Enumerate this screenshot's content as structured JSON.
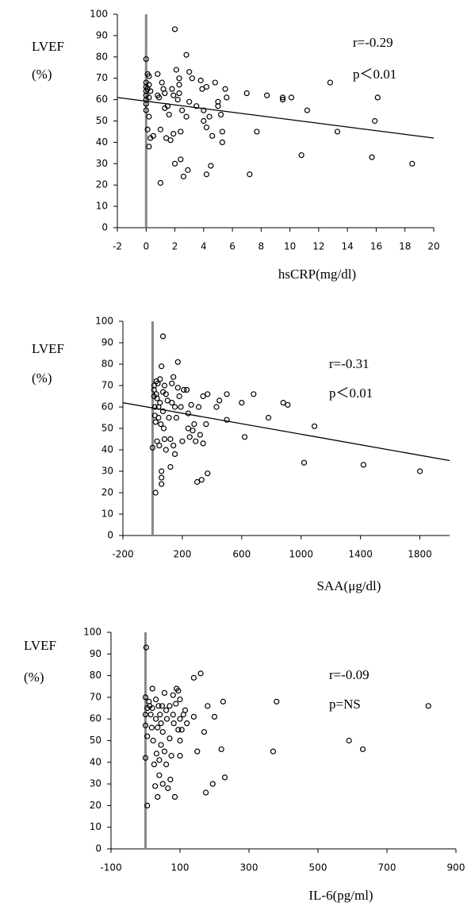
{
  "chart_data": [
    {
      "type": "scatter",
      "ylabel": "LVEF",
      "ylabel_unit": "(%)",
      "xlabel": "hsCRP(mg/dl)",
      "annotations": [
        "r=-0.29",
        "p＜0.01"
      ],
      "xlim": [
        -2,
        20
      ],
      "xticks": [
        -2,
        0,
        2,
        4,
        6,
        8,
        10,
        12,
        14,
        16,
        18,
        20
      ],
      "ylim": [
        0,
        100
      ],
      "yticks": [
        0,
        10,
        20,
        30,
        40,
        50,
        60,
        70,
        80,
        90,
        100
      ],
      "zero_line": true,
      "marker_color": "#000000",
      "fit": {
        "x": [
          -2,
          20
        ],
        "y": [
          61,
          42
        ]
      },
      "x": [
        0,
        0,
        0,
        0,
        0,
        0,
        0,
        0,
        0.1,
        0.2,
        0.2,
        0.1,
        0.3,
        0.2,
        0.2,
        0.1,
        0.3,
        0.2,
        0.5,
        0.8,
        0.8,
        0.9,
        1,
        1,
        1.1,
        1.2,
        1.3,
        1.3,
        1.4,
        1.5,
        1.6,
        1.7,
        1.8,
        1.9,
        1.9,
        2,
        2,
        2.1,
        2.2,
        2.3,
        2.3,
        2.3,
        2.4,
        2.4,
        2.5,
        2.6,
        2.8,
        2.8,
        2.9,
        3,
        3,
        3.2,
        3.5,
        3.8,
        3.9,
        4,
        4,
        4.2,
        4.2,
        4.2,
        4.4,
        4.5,
        4.6,
        4.8,
        5,
        5,
        5.2,
        5.3,
        5.3,
        5.5,
        5.6,
        7,
        7.2,
        7.7,
        8.4,
        9.5,
        9.5,
        10.1,
        10.8,
        11.2,
        12.8,
        13.3,
        15.7,
        15.9,
        16.1,
        18.5
      ],
      "y": [
        79,
        68,
        66,
        64,
        62,
        60,
        58,
        55,
        72,
        71,
        67,
        65,
        64,
        61,
        52,
        46,
        42,
        38,
        43,
        72,
        62,
        61,
        46,
        21,
        68,
        65,
        63,
        56,
        42,
        57,
        53,
        41,
        65,
        62,
        44,
        93,
        30,
        74,
        60,
        70,
        67,
        63,
        45,
        32,
        55,
        24,
        81,
        52,
        27,
        73,
        59,
        70,
        57,
        69,
        65,
        55,
        50,
        66,
        47,
        25,
        52,
        29,
        43,
        68,
        59,
        57,
        53,
        45,
        40,
        65,
        61,
        63,
        25,
        45,
        62,
        61,
        60,
        61,
        34,
        55,
        68,
        45,
        33,
        50,
        61,
        30
      ]
    },
    {
      "type": "scatter",
      "ylabel": "LVEF",
      "ylabel_unit": "(%)",
      "xlabel": "SAA(μg/dl)",
      "annotations": [
        "r=-0.31",
        "p＜0.01"
      ],
      "xlim": [
        -200,
        2000
      ],
      "xticks": [
        -200,
        200,
        600,
        1000,
        1400,
        1800
      ],
      "ylim": [
        0,
        100
      ],
      "yticks": [
        0,
        10,
        20,
        30,
        40,
        50,
        60,
        70,
        80,
        90,
        100
      ],
      "zero_line": true,
      "marker_color": "#000000",
      "fit": {
        "x": [
          -200,
          2000
        ],
        "y": [
          62,
          35
        ]
      },
      "x": [
        0,
        10,
        10,
        10,
        15,
        15,
        20,
        20,
        25,
        25,
        30,
        30,
        35,
        40,
        40,
        45,
        50,
        50,
        55,
        60,
        60,
        60,
        60,
        70,
        70,
        70,
        75,
        80,
        80,
        90,
        90,
        100,
        110,
        120,
        120,
        130,
        130,
        140,
        140,
        150,
        150,
        160,
        170,
        170,
        180,
        190,
        200,
        210,
        230,
        240,
        240,
        250,
        260,
        270,
        280,
        290,
        300,
        310,
        320,
        330,
        340,
        340,
        360,
        370,
        370,
        430,
        450,
        500,
        500,
        600,
        620,
        680,
        780,
        880,
        910,
        1020,
        1090,
        1420,
        1800
      ],
      "y": [
        41,
        70,
        68,
        65,
        60,
        56,
        53,
        20,
        72,
        66,
        64,
        44,
        71,
        60,
        55,
        42,
        73,
        62,
        52,
        79,
        30,
        27,
        24,
        93,
        67,
        58,
        50,
        70,
        45,
        66,
        40,
        63,
        55,
        45,
        32,
        71,
        62,
        74,
        42,
        60,
        38,
        55,
        81,
        69,
        65,
        60,
        44,
        68,
        68,
        57,
        50,
        46,
        61,
        49,
        52,
        44,
        25,
        60,
        47,
        26,
        65,
        43,
        52,
        29,
        66,
        60,
        63,
        66,
        54,
        62,
        46,
        66,
        55,
        62,
        61,
        34,
        51,
        33,
        30
      ]
    },
    {
      "type": "scatter",
      "ylabel": "LVEF",
      "ylabel_unit": "(%)",
      "xlabel": "IL-6(pg/ml)",
      "annotations": [
        "r=-0.09",
        "p=NS"
      ],
      "xlim": [
        -100,
        900
      ],
      "xticks": [
        -100,
        100,
        300,
        500,
        700,
        900
      ],
      "ylim": [
        0,
        100
      ],
      "yticks": [
        0,
        10,
        20,
        30,
        40,
        50,
        60,
        70,
        80,
        90,
        100
      ],
      "zero_line": true,
      "marker_color": "#000000",
      "x": [
        0,
        0,
        0,
        0,
        2,
        5,
        5,
        5,
        10,
        12,
        15,
        18,
        20,
        20,
        22,
        25,
        28,
        30,
        30,
        32,
        35,
        35,
        38,
        40,
        40,
        42,
        45,
        45,
        48,
        50,
        50,
        55,
        55,
        60,
        60,
        62,
        65,
        70,
        70,
        72,
        75,
        80,
        80,
        82,
        85,
        88,
        90,
        95,
        95,
        100,
        100,
        100,
        100,
        105,
        110,
        115,
        120,
        140,
        140,
        150,
        160,
        170,
        175,
        180,
        195,
        200,
        220,
        225,
        230,
        370,
        380,
        590,
        630,
        820
      ],
      "y": [
        70,
        62,
        57,
        42,
        93,
        65,
        52,
        20,
        68,
        66,
        62,
        56,
        74,
        65,
        50,
        39,
        29,
        69,
        60,
        44,
        56,
        24,
        66,
        41,
        34,
        62,
        58,
        48,
        66,
        54,
        30,
        72,
        45,
        64,
        39,
        60,
        28,
        66,
        51,
        32,
        43,
        71,
        62,
        58,
        24,
        67,
        74,
        73,
        55,
        69,
        60,
        50,
        43,
        55,
        62,
        64,
        58,
        79,
        61,
        45,
        81,
        54,
        26,
        66,
        30,
        61,
        46,
        68,
        33,
        45,
        68,
        50,
        46,
        66
      ]
    }
  ]
}
